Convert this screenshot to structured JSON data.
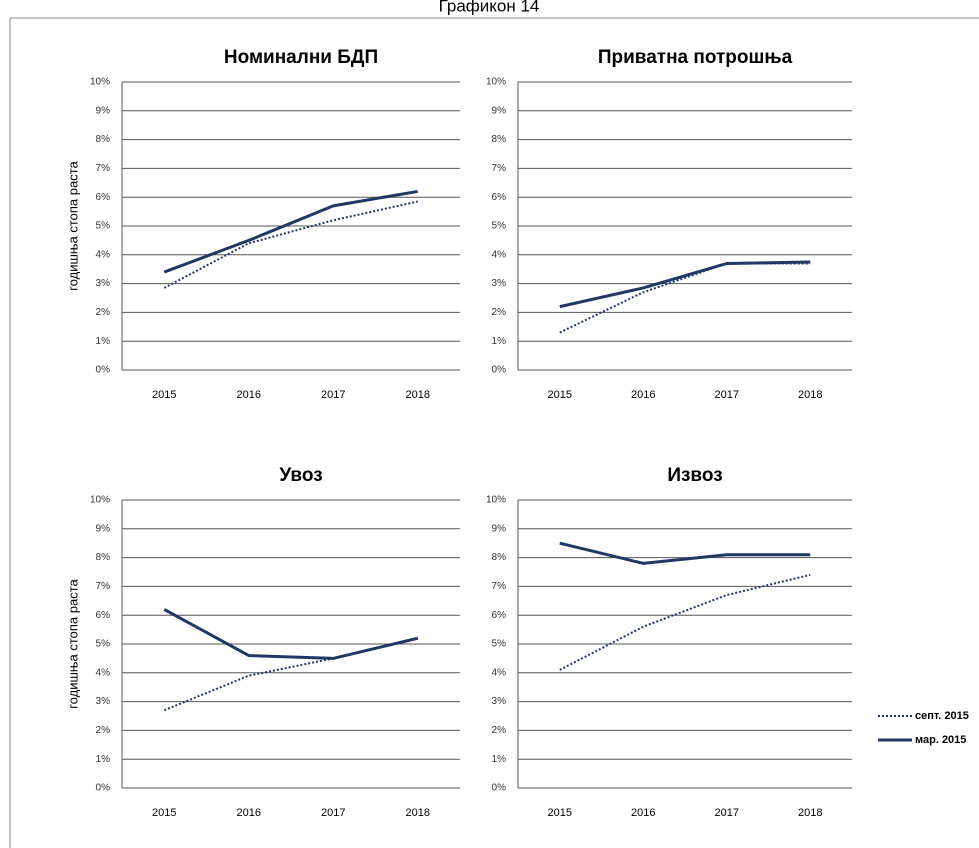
{
  "title": "Графикон 14",
  "chart_data": [
    {
      "type": "line",
      "title": "Номинални БДП",
      "y_label": "годишња стопа раста",
      "categories": [
        "2015",
        "2016",
        "2017",
        "2018"
      ],
      "series": [
        {
          "name": "септ. 2015",
          "color": "#1f3864",
          "style": "dotted",
          "values": [
            2.85,
            4.4,
            5.2,
            5.85
          ]
        },
        {
          "name": "мар. 2015",
          "color": "#1f3864",
          "style": "solid",
          "values": [
            3.4,
            4.5,
            5.7,
            6.2
          ]
        }
      ],
      "ylim": [
        0,
        10
      ],
      "yticks": [
        {
          "value": 0,
          "label": "0%"
        },
        {
          "value": 1,
          "label": "1%"
        },
        {
          "value": 2,
          "label": "2%"
        },
        {
          "value": 3,
          "label": "3%"
        },
        {
          "value": 4,
          "label": "4%"
        },
        {
          "value": 5,
          "label": "5%"
        },
        {
          "value": 6,
          "label": "6%"
        },
        {
          "value": 7,
          "label": "7%"
        },
        {
          "value": 8,
          "label": "8%"
        },
        {
          "value": 9,
          "label": "9%"
        },
        {
          "value": 10,
          "label": "10%"
        }
      ],
      "grid": true
    },
    {
      "type": "line",
      "title": "Приватна потрошња",
      "categories": [
        "2015",
        "2016",
        "2017",
        "2018"
      ],
      "series": [
        {
          "name": "септ. 2015",
          "color": "#1f3864",
          "style": "dotted",
          "values": [
            1.3,
            2.7,
            3.7,
            3.7
          ]
        },
        {
          "name": "мар. 2015",
          "color": "#1f3864",
          "style": "solid",
          "values": [
            2.2,
            2.85,
            3.7,
            3.75
          ]
        }
      ],
      "ylim": [
        0,
        10
      ],
      "yticks": [
        {
          "value": 0,
          "label": "0%"
        },
        {
          "value": 1,
          "label": "1%"
        },
        {
          "value": 2,
          "label": "2%"
        },
        {
          "value": 3,
          "label": "3%"
        },
        {
          "value": 4,
          "label": "4%"
        },
        {
          "value": 5,
          "label": "5%"
        },
        {
          "value": 6,
          "label": "6%"
        },
        {
          "value": 7,
          "label": "7%"
        },
        {
          "value": 8,
          "label": "8%"
        },
        {
          "value": 9,
          "label": "9%"
        },
        {
          "value": 10,
          "label": "10%"
        }
      ],
      "grid": true
    },
    {
      "type": "line",
      "title": "Увоз",
      "y_label": "годишња стопа раста",
      "categories": [
        "2015",
        "2016",
        "2017",
        "2018"
      ],
      "series": [
        {
          "name": "септ. 2015",
          "color": "#1f3864",
          "style": "dotted",
          "values": [
            2.7,
            3.9,
            4.5,
            5.2
          ]
        },
        {
          "name": "мар. 2015",
          "color": "#1f3864",
          "style": "solid",
          "values": [
            6.2,
            4.6,
            4.5,
            5.2
          ]
        }
      ],
      "ylim": [
        0,
        10
      ],
      "yticks": [
        {
          "value": 0,
          "label": "0%"
        },
        {
          "value": 1,
          "label": "1%"
        },
        {
          "value": 2,
          "label": "2%"
        },
        {
          "value": 3,
          "label": "3%"
        },
        {
          "value": 4,
          "label": "4%"
        },
        {
          "value": 5,
          "label": "5%"
        },
        {
          "value": 6,
          "label": "6%"
        },
        {
          "value": 7,
          "label": "7%"
        },
        {
          "value": 8,
          "label": "8%"
        },
        {
          "value": 9,
          "label": "9%"
        },
        {
          "value": 10,
          "label": "10%"
        }
      ],
      "grid": true
    },
    {
      "type": "line",
      "title": "Извоз",
      "categories": [
        "2015",
        "2016",
        "2017",
        "2018"
      ],
      "series": [
        {
          "name": "септ. 2015",
          "color": "#1f3864",
          "style": "dotted",
          "values": [
            4.1,
            5.6,
            6.7,
            7.4
          ]
        },
        {
          "name": "мар. 2015",
          "color": "#1f3864",
          "style": "solid",
          "values": [
            8.5,
            7.8,
            8.1,
            8.1
          ]
        }
      ],
      "ylim": [
        0,
        10
      ],
      "yticks": [
        {
          "value": 0,
          "label": "0%"
        },
        {
          "value": 1,
          "label": "1%"
        },
        {
          "value": 2,
          "label": "2%"
        },
        {
          "value": 3,
          "label": "3%"
        },
        {
          "value": 4,
          "label": "4%"
        },
        {
          "value": 5,
          "label": "5%"
        },
        {
          "value": 6,
          "label": "6%"
        },
        {
          "value": 7,
          "label": "7%"
        },
        {
          "value": 8,
          "label": "8%"
        },
        {
          "value": 9,
          "label": "9%"
        },
        {
          "value": 10,
          "label": "10%"
        }
      ],
      "grid": true,
      "legend": "right"
    }
  ]
}
